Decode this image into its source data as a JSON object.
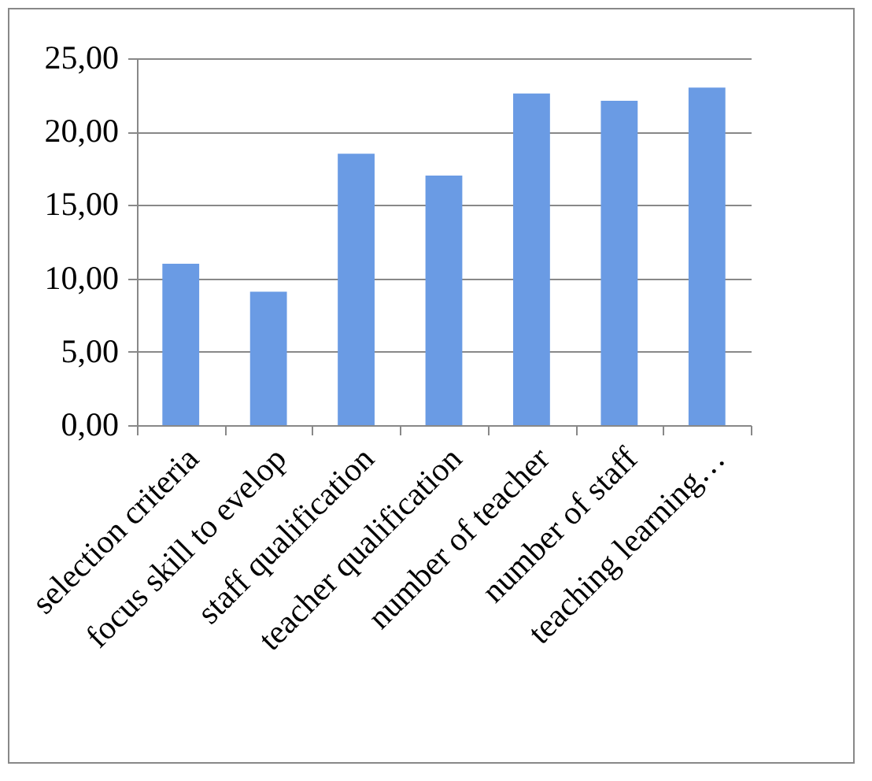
{
  "chart_data": {
    "type": "bar",
    "categories": [
      "selection criteria",
      "focus skill to evelop",
      "staff qualification",
      "teacher qualification",
      "number of teacher",
      "number of staff",
      "teaching learning…"
    ],
    "values": [
      11.0,
      9.1,
      18.5,
      17.0,
      22.6,
      22.1,
      23.0
    ],
    "color": "#6a9be4",
    "ylim": [
      0,
      25
    ],
    "yticks": [
      {
        "value": 0,
        "label": "0,00"
      },
      {
        "value": 5,
        "label": "5,00"
      },
      {
        "value": 10,
        "label": "10,00"
      },
      {
        "value": 15,
        "label": "15,00"
      },
      {
        "value": 20,
        "label": "20,00"
      },
      {
        "value": 25,
        "label": "25,00"
      }
    ],
    "grid": "y"
  }
}
